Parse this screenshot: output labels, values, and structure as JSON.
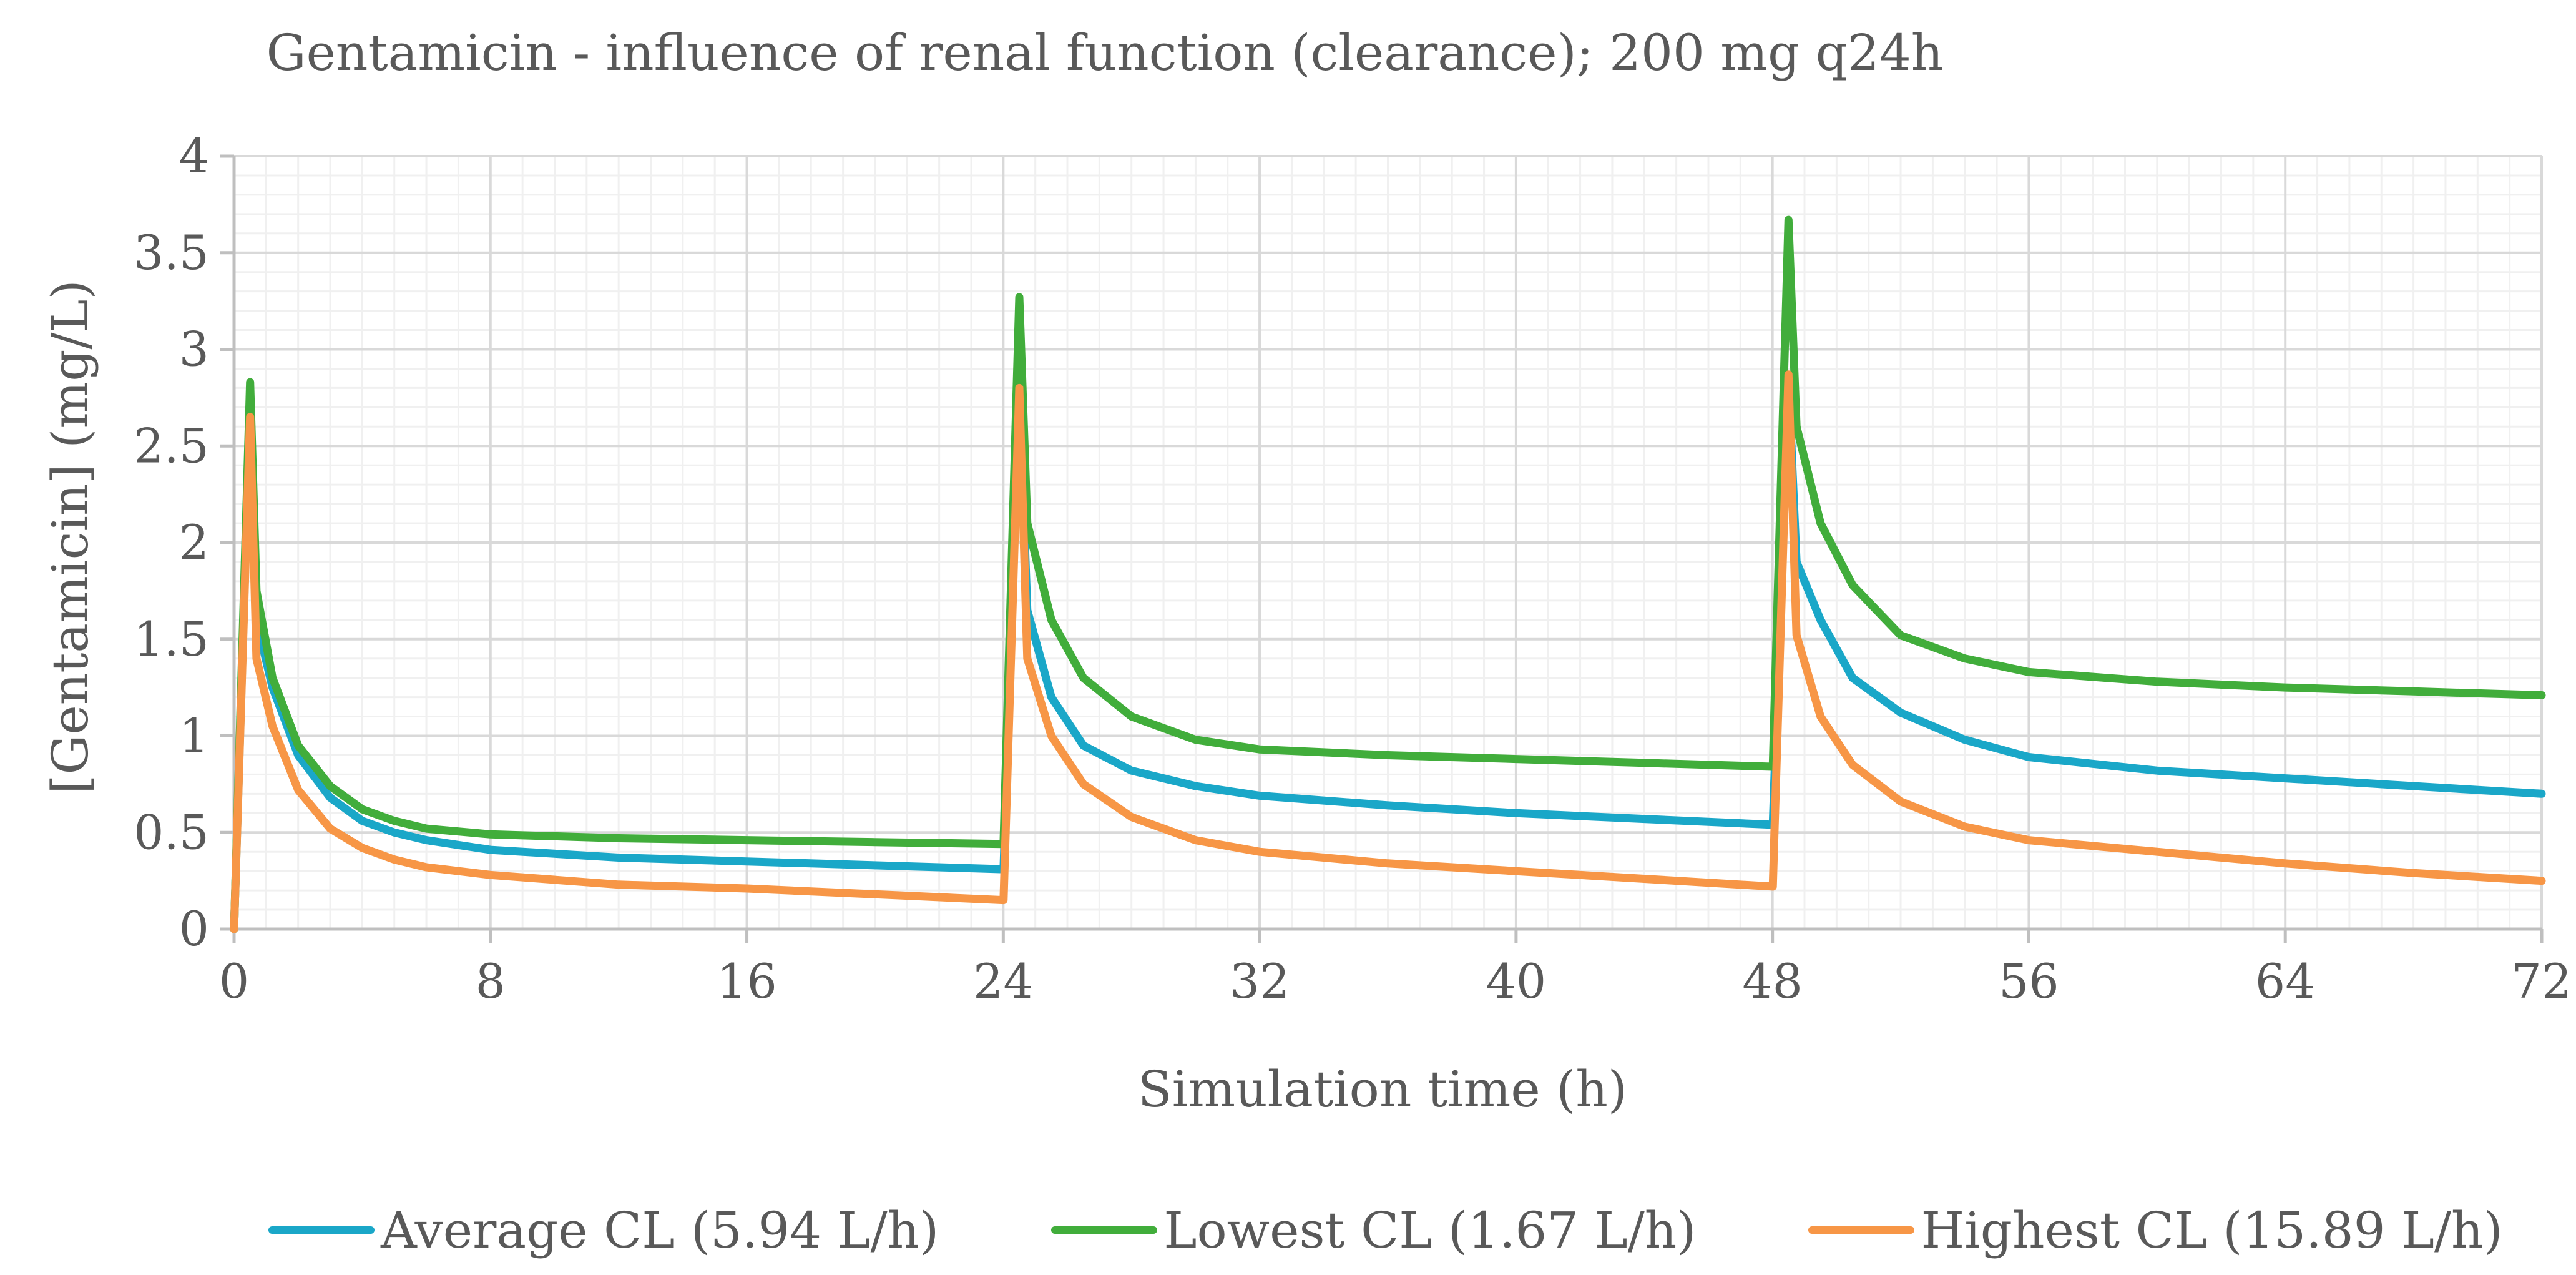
{
  "chart_data": {
    "type": "line",
    "title": "Gentamicin - influence of renal function (clearance); 200 mg q24h",
    "xlabel": "Simulation time (h)",
    "ylabel": "[Gentamicin] (mg/L)",
    "xlim": [
      0,
      72
    ],
    "ylim": [
      0,
      4
    ],
    "x_ticks": [
      "0",
      "8",
      "16",
      "24",
      "32",
      "40",
      "48",
      "56",
      "64",
      "72"
    ],
    "y_ticks": [
      "0",
      "0.5",
      "1",
      "1.5",
      "2",
      "2.5",
      "3",
      "3.5",
      "4"
    ],
    "grid": true,
    "legend_position": "bottom",
    "series": [
      {
        "name": "Average CL (5.94 L/h)",
        "color": "#1aa7c8",
        "points": [
          [
            0,
            0
          ],
          [
            0.5,
            2.7
          ],
          [
            0.7,
            1.6
          ],
          [
            1.2,
            1.25
          ],
          [
            2,
            0.9
          ],
          [
            3,
            0.68
          ],
          [
            4,
            0.56
          ],
          [
            5,
            0.5
          ],
          [
            6,
            0.46
          ],
          [
            8,
            0.41
          ],
          [
            12,
            0.37
          ],
          [
            16,
            0.35
          ],
          [
            20,
            0.33
          ],
          [
            24,
            0.31
          ],
          [
            24.01,
            0.31
          ],
          [
            24.5,
            2.8
          ],
          [
            24.75,
            1.65
          ],
          [
            25.5,
            1.2
          ],
          [
            26.5,
            0.95
          ],
          [
            28,
            0.82
          ],
          [
            30,
            0.74
          ],
          [
            32,
            0.69
          ],
          [
            36,
            0.64
          ],
          [
            40,
            0.6
          ],
          [
            44,
            0.57
          ],
          [
            48,
            0.54
          ],
          [
            48.01,
            0.54
          ],
          [
            48.5,
            2.85
          ],
          [
            48.75,
            1.9
          ],
          [
            49.5,
            1.6
          ],
          [
            50.5,
            1.3
          ],
          [
            52,
            1.12
          ],
          [
            54,
            0.98
          ],
          [
            56,
            0.89
          ],
          [
            60,
            0.82
          ],
          [
            64,
            0.78
          ],
          [
            68,
            0.74
          ],
          [
            72,
            0.7
          ]
        ]
      },
      {
        "name": "Lowest CL (1.67 L/h)",
        "color": "#41ad3b",
        "points": [
          [
            0,
            0
          ],
          [
            0.5,
            2.83
          ],
          [
            0.7,
            1.75
          ],
          [
            1.2,
            1.3
          ],
          [
            2,
            0.95
          ],
          [
            3,
            0.74
          ],
          [
            4,
            0.62
          ],
          [
            5,
            0.56
          ],
          [
            6,
            0.52
          ],
          [
            8,
            0.49
          ],
          [
            12,
            0.47
          ],
          [
            16,
            0.46
          ],
          [
            20,
            0.45
          ],
          [
            24,
            0.44
          ],
          [
            24.01,
            0.44
          ],
          [
            24.5,
            3.27
          ],
          [
            24.75,
            2.1
          ],
          [
            25.5,
            1.6
          ],
          [
            26.5,
            1.3
          ],
          [
            28,
            1.1
          ],
          [
            30,
            0.98
          ],
          [
            32,
            0.93
          ],
          [
            36,
            0.9
          ],
          [
            40,
            0.88
          ],
          [
            44,
            0.86
          ],
          [
            48,
            0.84
          ],
          [
            48.01,
            0.84
          ],
          [
            48.5,
            3.67
          ],
          [
            48.75,
            2.6
          ],
          [
            49.5,
            2.1
          ],
          [
            50.5,
            1.78
          ],
          [
            52,
            1.52
          ],
          [
            54,
            1.4
          ],
          [
            56,
            1.33
          ],
          [
            60,
            1.28
          ],
          [
            64,
            1.25
          ],
          [
            68,
            1.23
          ],
          [
            72,
            1.21
          ]
        ]
      },
      {
        "name": "Highest CL (15.89 L/h)",
        "color": "#f79646",
        "points": [
          [
            0,
            0
          ],
          [
            0.5,
            2.65
          ],
          [
            0.7,
            1.4
          ],
          [
            1.2,
            1.05
          ],
          [
            2,
            0.72
          ],
          [
            3,
            0.52
          ],
          [
            4,
            0.42
          ],
          [
            5,
            0.36
          ],
          [
            6,
            0.32
          ],
          [
            8,
            0.28
          ],
          [
            12,
            0.23
          ],
          [
            16,
            0.21
          ],
          [
            20,
            0.18
          ],
          [
            24,
            0.15
          ],
          [
            24.01,
            0.15
          ],
          [
            24.5,
            2.8
          ],
          [
            24.75,
            1.4
          ],
          [
            25.5,
            1.0
          ],
          [
            26.5,
            0.75
          ],
          [
            28,
            0.58
          ],
          [
            30,
            0.46
          ],
          [
            32,
            0.4
          ],
          [
            36,
            0.34
          ],
          [
            40,
            0.3
          ],
          [
            44,
            0.26
          ],
          [
            48,
            0.22
          ],
          [
            48.01,
            0.22
          ],
          [
            48.5,
            2.87
          ],
          [
            48.75,
            1.52
          ],
          [
            49.5,
            1.1
          ],
          [
            50.5,
            0.85
          ],
          [
            52,
            0.66
          ],
          [
            54,
            0.53
          ],
          [
            56,
            0.46
          ],
          [
            60,
            0.4
          ],
          [
            64,
            0.34
          ],
          [
            68,
            0.29
          ],
          [
            72,
            0.25
          ]
        ]
      }
    ]
  }
}
